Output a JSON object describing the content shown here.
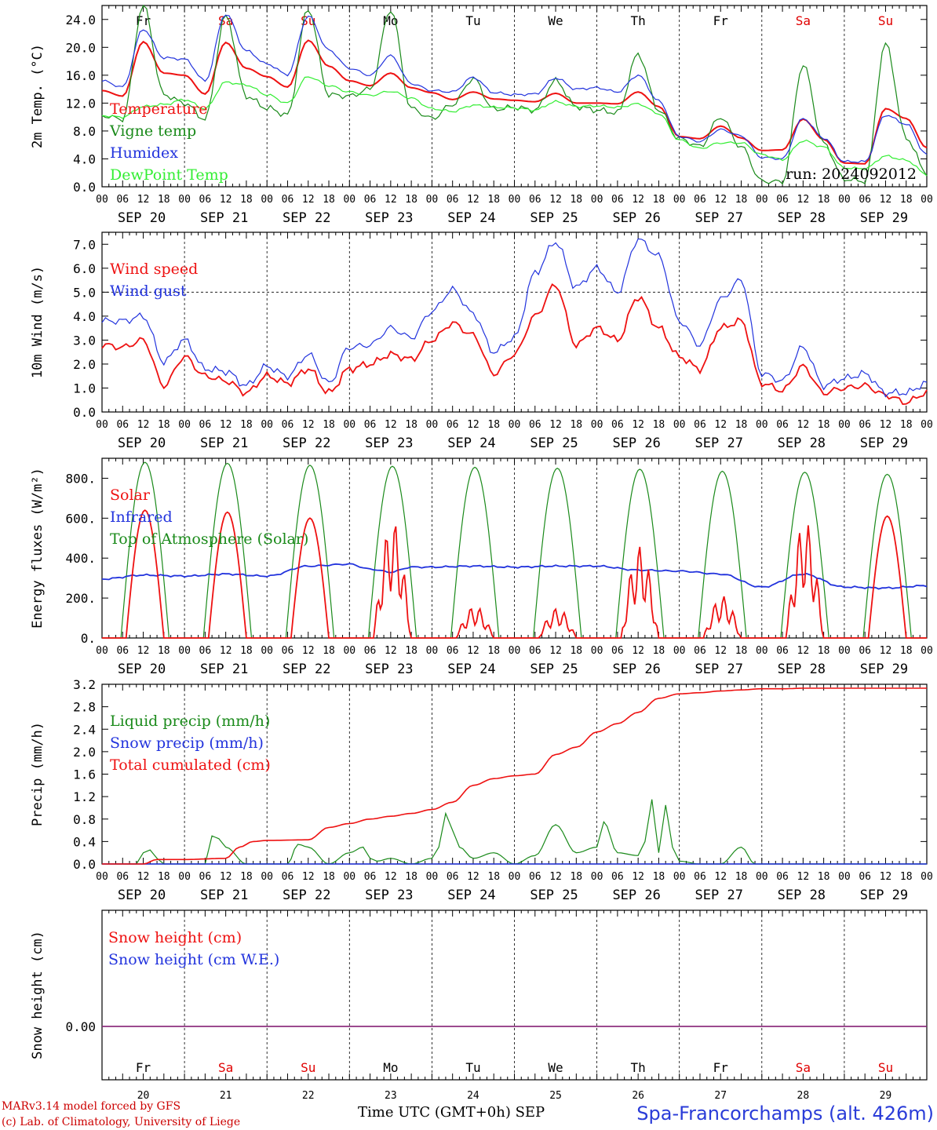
{
  "header_days": [
    {
      "label": "Fr",
      "color": "#000000"
    },
    {
      "label": "Sa",
      "color": "#e00000"
    },
    {
      "label": "Su",
      "color": "#e00000"
    },
    {
      "label": "Mo",
      "color": "#000000"
    },
    {
      "label": "Tu",
      "color": "#000000"
    },
    {
      "label": "We",
      "color": "#000000"
    },
    {
      "label": "Th",
      "color": "#000000"
    },
    {
      "label": "Fr",
      "color": "#000000"
    },
    {
      "label": "Sa",
      "color": "#e00000"
    },
    {
      "label": "Su",
      "color": "#e00000"
    }
  ],
  "date_labels": [
    "SEP 20",
    "SEP 21",
    "SEP 22",
    "SEP 23",
    "SEP 24",
    "SEP 25",
    "SEP 26",
    "SEP 27",
    "SEP 28",
    "SEP 29"
  ],
  "hour_ticks": [
    "00",
    "06",
    "12",
    "18"
  ],
  "day_numbers": [
    "20",
    "21",
    "22",
    "23",
    "24",
    "25",
    "26",
    "27",
    "28",
    "29"
  ],
  "footer": {
    "credit_line1": "MARv3.14 model forced by GFS",
    "credit_line2": "(c) Lab. of Climatology, University of Liege",
    "time_axis": "Time UTC (GMT+0h) SEP",
    "station": "Spa-Francorchamps (alt. 426m)"
  },
  "chart_data": [
    {
      "type": "line",
      "ylabel": "2m Temp. (°C)",
      "ylim": [
        0,
        26
      ],
      "yticks": [
        "0.0",
        "4.0",
        "8.0",
        "12.0",
        "16.0",
        "20.0",
        "24.0"
      ],
      "ytick_values": [
        0,
        4,
        8,
        12,
        16,
        20,
        24
      ],
      "annotation": "run: 2024092012",
      "x_hours": [
        0,
        6,
        12,
        18,
        24,
        30,
        36,
        42,
        48,
        54,
        60,
        66,
        72,
        78,
        84,
        90,
        96,
        102,
        108,
        114,
        120,
        126,
        132,
        138,
        144,
        150,
        156,
        162,
        168,
        174,
        180,
        186,
        192,
        198,
        204,
        210,
        216,
        222,
        228,
        234,
        240
      ],
      "series": [
        {
          "name": "Temperature",
          "color": "#ee1111",
          "values": [
            13.8,
            13.0,
            20.8,
            16.3,
            16.0,
            13.3,
            20.7,
            17.0,
            15.8,
            14.3,
            21.0,
            17.3,
            15.2,
            14.5,
            16.3,
            14.2,
            13.5,
            12.5,
            13.6,
            12.6,
            12.4,
            12.2,
            13.4,
            12.0,
            12.0,
            11.9,
            13.6,
            11.5,
            7.2,
            6.9,
            8.7,
            7.0,
            5.2,
            5.3,
            9.7,
            6.8,
            3.4,
            3.3,
            11.2,
            9.8,
            5.6
          ]
        },
        {
          "name": "Vigne temp",
          "color": "#1a8a1a",
          "values": [
            10.2,
            9.7,
            26.0,
            13.2,
            12.0,
            9.7,
            24.5,
            13.0,
            11.3,
            10.3,
            25.5,
            13.2,
            13.0,
            14.0,
            25.4,
            11.2,
            9.8,
            11.8,
            15.5,
            11.1,
            11.4,
            11.0,
            15.2,
            11.5,
            11.0,
            10.6,
            19.0,
            11.0,
            6.9,
            5.8,
            10.0,
            5.7,
            0.8,
            0.7,
            17.5,
            6.2,
            1.1,
            0.8,
            20.5,
            7.0,
            2.0
          ]
        },
        {
          "name": "Humidex",
          "color": "#2233dd",
          "values": [
            15.2,
            14.3,
            22.6,
            18.5,
            18.3,
            15.2,
            24.8,
            19.5,
            17.6,
            16.1,
            24.5,
            19.6,
            17.0,
            16.0,
            18.8,
            14.8,
            13.8,
            13.6,
            15.7,
            13.5,
            13.2,
            13.3,
            15.6,
            14.0,
            14.2,
            13.6,
            16.0,
            12.3,
            7.2,
            6.5,
            8.2,
            7.3,
            4.2,
            4.0,
            9.8,
            7.0,
            3.6,
            3.6,
            10.3,
            9.0,
            4.6
          ]
        },
        {
          "name": "DewPoint Temp",
          "color": "#33ee33",
          "values": [
            10.2,
            10.0,
            11.5,
            11.8,
            12.5,
            11.2,
            15.0,
            14.6,
            13.2,
            12.0,
            15.8,
            14.5,
            13.6,
            13.1,
            13.7,
            12.7,
            11.2,
            10.8,
            11.7,
            11.4,
            11.3,
            11.0,
            12.2,
            11.5,
            11.6,
            11.4,
            11.9,
            10.5,
            6.7,
            5.5,
            6.3,
            6.3,
            4.6,
            3.9,
            6.6,
            5.7,
            2.7,
            2.6,
            4.4,
            3.8,
            1.8
          ]
        }
      ]
    },
    {
      "type": "line",
      "ylabel": "10m Wind (m/s)",
      "ylim": [
        0,
        7.5
      ],
      "yticks": [
        "0.0",
        "1.0",
        "2.0",
        "3.0",
        "4.0",
        "5.0",
        "6.0",
        "7.0"
      ],
      "ytick_values": [
        0,
        1,
        2,
        3,
        4,
        5,
        6,
        7
      ],
      "reference_line": 5.0,
      "x_hours": [
        0,
        6,
        12,
        18,
        24,
        30,
        36,
        42,
        48,
        54,
        60,
        66,
        72,
        78,
        84,
        90,
        96,
        102,
        108,
        114,
        120,
        126,
        132,
        138,
        144,
        150,
        156,
        162,
        168,
        174,
        180,
        186,
        192,
        198,
        204,
        210,
        216,
        222,
        228,
        234,
        240
      ],
      "series": [
        {
          "name": "Wind speed",
          "color": "#ee1111",
          "values": [
            2.8,
            2.7,
            3.0,
            1.1,
            2.3,
            1.5,
            1.3,
            0.8,
            1.5,
            1.2,
            1.8,
            0.8,
            1.8,
            2.0,
            2.4,
            2.2,
            3.0,
            3.7,
            3.2,
            1.6,
            2.4,
            4.0,
            5.3,
            2.8,
            3.5,
            3.0,
            4.8,
            3.5,
            2.3,
            1.8,
            3.5,
            3.8,
            1.2,
            0.9,
            1.9,
            0.8,
            1.0,
            1.1,
            0.7,
            0.4,
            0.8
          ]
        },
        {
          "name": "Wind gust",
          "color": "#2233dd",
          "values": [
            3.8,
            3.8,
            4.0,
            2.1,
            3.0,
            1.8,
            1.7,
            1.1,
            1.9,
            1.5,
            2.4,
            1.2,
            2.7,
            2.8,
            3.5,
            3.1,
            4.2,
            5.1,
            4.1,
            2.5,
            3.1,
            5.8,
            7.1,
            5.2,
            6.0,
            5.0,
            7.2,
            6.5,
            3.8,
            2.8,
            4.7,
            5.5,
            1.6,
            1.3,
            2.7,
            1.1,
            1.4,
            1.6,
            0.8,
            0.8,
            1.2
          ]
        }
      ]
    },
    {
      "type": "line",
      "ylabel": "Energy fluxes (W/m²)",
      "ylim": [
        0,
        900
      ],
      "yticks": [
        "0.",
        "200.",
        "400.",
        "600.",
        "800."
      ],
      "ytick_values": [
        0,
        200,
        400,
        600,
        800
      ],
      "daily_peaks": {
        "Solar": [
          640,
          630,
          600,
          590,
          160,
          150,
          460,
          210,
          590,
          610
        ],
        "Top of Atmosphere (Solar)": [
          880,
          875,
          865,
          860,
          855,
          850,
          845,
          835,
          830,
          820
        ]
      },
      "series": [
        {
          "name": "Solar",
          "color": "#ee1111"
        },
        {
          "name": "Infrared",
          "color": "#2233dd",
          "x_hours": [
            0,
            12,
            24,
            36,
            48,
            60,
            72,
            78,
            84,
            90,
            96,
            108,
            120,
            132,
            144,
            156,
            168,
            180,
            192,
            204,
            216,
            228,
            240
          ],
          "values": [
            295,
            315,
            310,
            320,
            310,
            360,
            370,
            345,
            330,
            355,
            355,
            360,
            355,
            360,
            360,
            340,
            335,
            320,
            255,
            320,
            255,
            250,
            262
          ]
        },
        {
          "name": "Top of Atmosphere (Solar)",
          "color": "#1a8a1a"
        }
      ]
    },
    {
      "type": "line",
      "ylabel": "Precip (mm/h)",
      "ylim": [
        0,
        3.2
      ],
      "yticks": [
        "0.0",
        "0.4",
        "0.8",
        "1.2",
        "1.6",
        "2.0",
        "2.4",
        "2.8",
        "3.2"
      ],
      "ytick_values": [
        0,
        0.4,
        0.8,
        1.2,
        1.6,
        2.0,
        2.4,
        2.8,
        3.2
      ],
      "series": [
        {
          "name": "Liquid precip (mm/h)",
          "color": "#1a8a1a",
          "x_hours": [
            0,
            10,
            12,
            14,
            16,
            18,
            24,
            30,
            32,
            34,
            36,
            42,
            48,
            54,
            57,
            60,
            66,
            72,
            76,
            78,
            80,
            84,
            90,
            96,
            98,
            100,
            102,
            104,
            108,
            114,
            120,
            126,
            132,
            138,
            144,
            146,
            150,
            156,
            158,
            160,
            162,
            164,
            166,
            168,
            174,
            180,
            186,
            190,
            192,
            198,
            204,
            210,
            216,
            222,
            228,
            234,
            240
          ],
          "values": [
            0,
            0,
            0.2,
            0.25,
            0.1,
            0,
            0,
            0,
            0.5,
            0.45,
            0.3,
            0,
            0,
            0,
            0.35,
            0.3,
            0,
            0.2,
            0.3,
            0.1,
            0.05,
            0.1,
            0,
            0.1,
            0.3,
            0.9,
            0.6,
            0.3,
            0.1,
            0.2,
            0,
            0.15,
            0.7,
            0.2,
            0.3,
            0.75,
            0.2,
            0.15,
            0.4,
            1.15,
            0.2,
            1.05,
            0.3,
            0.05,
            0,
            0,
            0.3,
            0,
            0,
            0,
            0,
            0,
            0,
            0,
            0,
            0,
            0
          ]
        },
        {
          "name": "Snow precip (mm/h)",
          "color": "#2233dd",
          "x_hours": [
            0,
            240
          ],
          "values": [
            0,
            0
          ]
        },
        {
          "name": "Total cumulated (cm)",
          "color": "#ee1111",
          "x_hours": [
            0,
            12,
            16,
            24,
            36,
            40,
            44,
            48,
            60,
            66,
            72,
            78,
            84,
            90,
            96,
            102,
            108,
            114,
            120,
            126,
            132,
            138,
            144,
            150,
            156,
            162,
            168,
            174,
            180,
            186,
            192,
            198,
            204,
            210,
            216,
            222,
            228,
            234,
            240
          ],
          "values": [
            0,
            0,
            0.08,
            0.08,
            0.1,
            0.3,
            0.4,
            0.42,
            0.43,
            0.65,
            0.72,
            0.8,
            0.85,
            0.9,
            0.97,
            1.1,
            1.4,
            1.52,
            1.57,
            1.6,
            1.95,
            2.08,
            2.35,
            2.5,
            2.7,
            2.95,
            3.03,
            3.05,
            3.08,
            3.1,
            3.12,
            3.12,
            3.13,
            3.13,
            3.13,
            3.13,
            3.13,
            3.13,
            3.13
          ]
        }
      ]
    },
    {
      "type": "line",
      "ylabel": "Snow height (cm)",
      "yticks": [
        "0.00"
      ],
      "ytick_values": [
        0
      ],
      "series": [
        {
          "name": "Snow height (cm)",
          "color": "#ee1111",
          "values": [
            0,
            0
          ]
        },
        {
          "name": "Snow height (cm W.E.)",
          "color": "#2233dd",
          "values": [
            0,
            0
          ]
        }
      ]
    }
  ]
}
